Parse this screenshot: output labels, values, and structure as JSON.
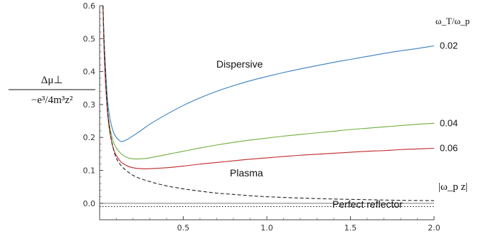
{
  "chart_data": {
    "type": "line",
    "xlim": [
      0,
      2.0
    ],
    "ylim": [
      -0.05,
      0.6
    ],
    "x_ticks": [
      "0.5",
      "1.0",
      "1.5",
      "2.0"
    ],
    "x_tick_values": [
      0.5,
      1.0,
      1.5,
      2.0
    ],
    "y_ticks": [
      "0.0",
      "0.1",
      "0.2",
      "0.3",
      "0.4",
      "0.5",
      "0.6"
    ],
    "y_tick_values": [
      0.0,
      0.1,
      0.2,
      0.3,
      0.4,
      0.5,
      0.6
    ],
    "xlabel": "|ω_p z|",
    "ylabel": {
      "numerator": "Δμ⊥",
      "denominator": "−e³/4m³z²"
    },
    "legend_title": "ω_T/ω_p",
    "annotations": {
      "dispersive": "Dispersive",
      "plasma": "Plasma",
      "perfect_reflector": "Perfect reflector"
    },
    "series": [
      {
        "name": "0.02",
        "color": "#3a7fbf",
        "style": "solid",
        "x": [
          0.02,
          0.03,
          0.05,
          0.08,
          0.12,
          0.15,
          0.2,
          0.25,
          0.3,
          0.4,
          0.5,
          0.6,
          0.7,
          0.8,
          0.9,
          1.0,
          1.1,
          1.2,
          1.3,
          1.4,
          1.5,
          1.6,
          1.7,
          1.8,
          1.9,
          2.0
        ],
        "y": [
          0.6,
          0.46,
          0.3,
          0.22,
          0.19,
          0.19,
          0.205,
          0.222,
          0.24,
          0.27,
          0.297,
          0.32,
          0.34,
          0.357,
          0.372,
          0.385,
          0.397,
          0.408,
          0.418,
          0.428,
          0.437,
          0.446,
          0.455,
          0.463,
          0.47,
          0.478
        ]
      },
      {
        "name": "0.04",
        "color": "#6fae3c",
        "style": "solid",
        "x": [
          0.02,
          0.03,
          0.05,
          0.08,
          0.12,
          0.16,
          0.2,
          0.25,
          0.3,
          0.4,
          0.5,
          0.6,
          0.7,
          0.8,
          0.9,
          1.0,
          1.1,
          1.2,
          1.3,
          1.4,
          1.5,
          1.6,
          1.7,
          1.8,
          1.9,
          2.0
        ],
        "y": [
          0.6,
          0.43,
          0.27,
          0.19,
          0.155,
          0.14,
          0.135,
          0.135,
          0.138,
          0.148,
          0.158,
          0.168,
          0.177,
          0.185,
          0.192,
          0.198,
          0.204,
          0.209,
          0.214,
          0.219,
          0.224,
          0.228,
          0.232,
          0.236,
          0.24,
          0.243
        ]
      },
      {
        "name": "0.06",
        "color": "#c0282c",
        "style": "solid",
        "x": [
          0.02,
          0.03,
          0.05,
          0.08,
          0.12,
          0.16,
          0.2,
          0.25,
          0.3,
          0.4,
          0.5,
          0.6,
          0.7,
          0.8,
          0.9,
          1.0,
          1.1,
          1.2,
          1.3,
          1.4,
          1.5,
          1.6,
          1.7,
          1.8,
          1.9,
          2.0
        ],
        "y": [
          0.6,
          0.42,
          0.26,
          0.17,
          0.13,
          0.115,
          0.108,
          0.105,
          0.105,
          0.108,
          0.113,
          0.119,
          0.124,
          0.129,
          0.134,
          0.138,
          0.142,
          0.146,
          0.149,
          0.152,
          0.155,
          0.158,
          0.16,
          0.163,
          0.165,
          0.167
        ]
      },
      {
        "name": "Plasma",
        "color": "#222222",
        "style": "dashed",
        "x": [
          0.02,
          0.03,
          0.05,
          0.08,
          0.12,
          0.2,
          0.3,
          0.4,
          0.5,
          0.6,
          0.7,
          0.8,
          0.9,
          1.0,
          1.2,
          1.4,
          1.6,
          1.8,
          2.0
        ],
        "y": [
          0.6,
          0.45,
          0.27,
          0.17,
          0.12,
          0.085,
          0.066,
          0.053,
          0.044,
          0.037,
          0.031,
          0.027,
          0.023,
          0.02,
          0.016,
          0.013,
          0.011,
          0.009,
          0.008
        ]
      },
      {
        "name": "Perfect reflector",
        "color": "#222222",
        "style": "dotted",
        "x": [
          0.0,
          2.0
        ],
        "y": [
          -0.01,
          -0.01
        ]
      }
    ],
    "grid": false,
    "legend_placement": "right margin"
  }
}
